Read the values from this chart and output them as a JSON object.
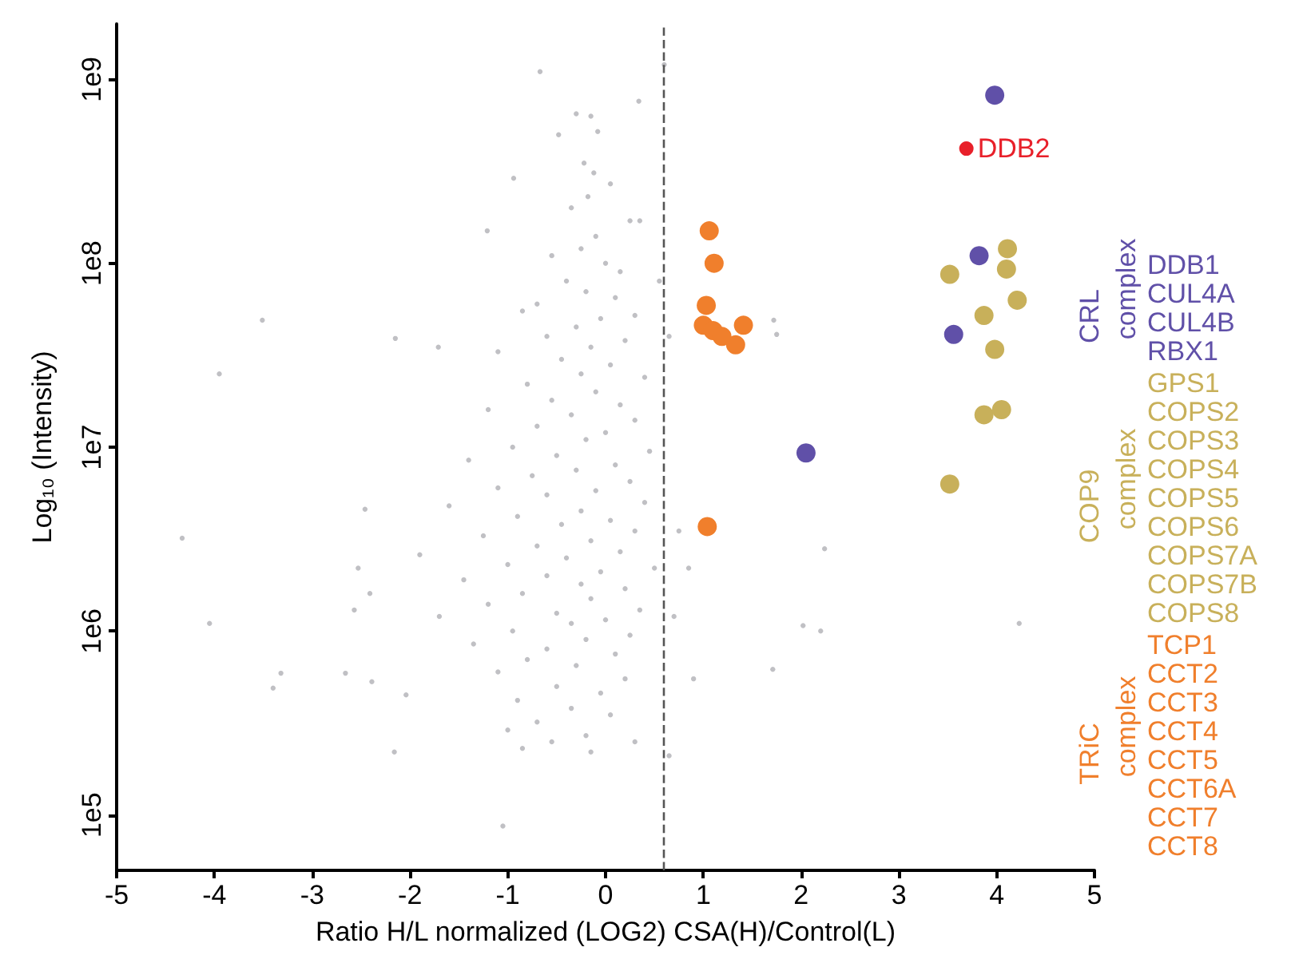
{
  "chart_data": {
    "type": "scatter",
    "xlabel": "Ratio H/L normalized (LOG2) CSA(H)/Control(L)",
    "ylabel": "Log₁₀ (Intensity)",
    "log": "y",
    "grid": false,
    "legend": false,
    "marker": "circle",
    "xlim": [
      -5,
      5
    ],
    "xticks": [
      -5,
      -4,
      -3,
      -2,
      -1,
      0,
      1,
      2,
      3,
      4,
      5
    ],
    "ylim": [
      50000,
      2000000000
    ],
    "yticks": [
      {
        "value": 100000,
        "label": "1e5"
      },
      {
        "value": 1000000,
        "label": "1e6"
      },
      {
        "value": 10000000,
        "label": "1e7"
      },
      {
        "value": 100000000,
        "label": "1e8"
      },
      {
        "value": 1000000000,
        "label": "1e9"
      }
    ],
    "ref_lines": [
      {
        "axis": "x",
        "value": 0.6,
        "label": null,
        "color": "#555555",
        "line_style": "dashed"
      }
    ],
    "annotations": [
      {
        "text": "DDB2",
        "x": 3.69,
        "y": 420000000
      },
      "DDB1\nCUL4A\nCUL4B\nRBX1",
      "GPS1\nCOPS2\nCOPS3\nCOPS4\nCOPS5\nCOPS6\nCOPS7A\nCOPS7B\nCOPS8",
      "TCP1\nCCT2\nCCT3\nCCT4\nCCT5\nCCT6A\nCCT7\nCCT8"
    ],
    "series": [
      {
        "color": "#c0c0c4",
        "x": [
          -4.33,
          -4.05,
          -3.32,
          -3.4,
          -2.66,
          -2.39,
          -2.46,
          -2.53,
          -2.57,
          -2.41,
          -2.16,
          -1.05,
          -2.04,
          -3.95,
          -3.51,
          -0.67,
          0.6,
          0.34,
          -2.15,
          -1.71,
          -1.21,
          -0.94,
          2.24,
          4.23,
          2.02,
          2.2,
          1.71,
          1.72,
          1.75,
          -0.3,
          -0.15,
          -0.48,
          -0.08,
          -0.22,
          -0.12,
          -0.18,
          0.05,
          -0.35,
          0.25,
          0.35,
          -0.1,
          -0.25,
          0.0,
          -0.55,
          0.15,
          -0.4,
          -0.2,
          0.1,
          -0.7,
          -0.85,
          -0.05,
          0.3,
          -0.3,
          -0.6,
          0.2,
          -0.15,
          -1.1,
          -0.45,
          0.05,
          -0.25,
          0.4,
          -0.8,
          -0.1,
          -0.55,
          0.15,
          -1.2,
          -0.35,
          0.3,
          -0.7,
          0.0,
          -0.2,
          -0.95,
          0.45,
          -0.5,
          -1.4,
          0.1,
          -0.3,
          -0.75,
          0.25,
          -1.1,
          -0.1,
          -0.6,
          0.4,
          -1.6,
          -0.25,
          -0.9,
          0.05,
          -0.45,
          0.3,
          -1.25,
          -0.15,
          -0.7,
          0.15,
          -1.9,
          -0.4,
          -1.0,
          0.5,
          -0.05,
          -0.6,
          -1.45,
          -0.25,
          0.2,
          -0.85,
          -0.15,
          -1.2,
          0.35,
          -0.5,
          -1.7,
          0.0,
          -0.35,
          -0.95,
          0.25,
          -0.2,
          -1.35,
          -0.6,
          0.1,
          -0.8,
          -0.3,
          -1.1,
          0.2,
          -0.5,
          -0.05,
          -0.9,
          -0.35,
          0.05,
          -0.7,
          -1.0,
          -0.2,
          -0.55,
          -0.85,
          -0.15,
          0.3,
          0.55,
          0.65,
          0.75,
          0.85,
          0.7,
          0.9,
          0.65
        ],
        "values": [
          3200000,
          1100000,
          590000,
          490000,
          590000,
          530000,
          4600000,
          2200000,
          1300000,
          1600000,
          220000,
          87000,
          450000,
          25000000,
          49000000,
          1100000000,
          1200000000,
          760000000,
          39000000,
          35000000,
          150000000,
          290000000,
          2800000,
          1100000,
          1070000,
          1000000,
          620000,
          49000000,
          41000000,
          650000000,
          630000000,
          500000000,
          520000000,
          350000000,
          310000000,
          230000000,
          270000000,
          200000000,
          170000000,
          170000000,
          140000000,
          120000000,
          100000000,
          110000000,
          90000000,
          80000000,
          70000000,
          65000000,
          60000000,
          55000000,
          50000000,
          52000000,
          45000000,
          40000000,
          38000000,
          35000000,
          33000000,
          30000000,
          28000000,
          25000000,
          24000000,
          22000000,
          20000000,
          18000000,
          17000000,
          16000000,
          15000000,
          14000000,
          13000000,
          12000000,
          11000000,
          10000000,
          9500000,
          9000000,
          8500000,
          8000000,
          7500000,
          7000000,
          6500000,
          6000000,
          5800000,
          5500000,
          5000000,
          4800000,
          4500000,
          4200000,
          4000000,
          3800000,
          3500000,
          3300000,
          3100000,
          2900000,
          2700000,
          2600000,
          2500000,
          2300000,
          2200000,
          2100000,
          2000000,
          1900000,
          1800000,
          1700000,
          1600000,
          1500000,
          1400000,
          1300000,
          1250000,
          1200000,
          1150000,
          1100000,
          1000000,
          950000,
          900000,
          850000,
          800000,
          750000,
          700000,
          650000,
          600000,
          550000,
          500000,
          460000,
          420000,
          380000,
          350000,
          320000,
          290000,
          270000,
          250000,
          230000,
          220000,
          250000,
          80000000,
          40000000,
          3500000,
          2200000,
          1200000,
          550000,
          210000
        ]
      },
      {
        "color": "#e8202a",
        "x": [
          3.69
        ],
        "values": [
          420000000
        ]
      },
      {
        "name": "CRL complex",
        "color": "#6050a8",
        "x": [
          3.98,
          3.82,
          3.56,
          2.05
        ],
        "values": [
          820000000,
          110000000,
          41000000,
          9300000
        ]
      },
      {
        "name": "COP9 complex",
        "color": "#c8b05a",
        "x": [
          4.11,
          4.1,
          3.52,
          4.21,
          3.87,
          3.98,
          3.87,
          4.05,
          3.52
        ],
        "values": [
          120000000,
          93000000,
          87000000,
          63000000,
          52000000,
          34000000,
          15000000,
          16000000,
          6300000
        ]
      },
      {
        "name": "TRiC complex",
        "color": "#f07f2c",
        "x": [
          1.06,
          1.11,
          1.03,
          1.0,
          1.1,
          1.19,
          1.33,
          1.41,
          1.04
        ],
        "values": [
          150000000,
          100000000,
          59000000,
          46000000,
          43000000,
          40000000,
          36000000,
          46000000,
          3700000
        ]
      }
    ]
  }
}
